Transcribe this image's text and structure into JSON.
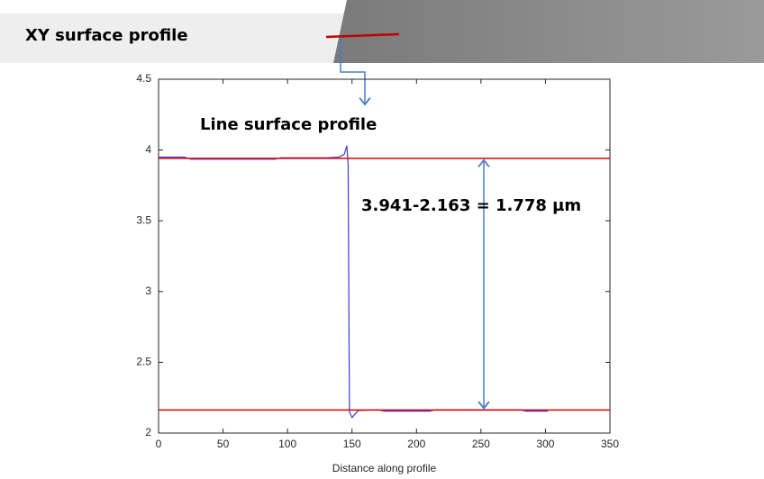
{
  "header": {
    "title": "XY surface profile"
  },
  "chart_data": {
    "type": "line",
    "x": [
      0,
      20,
      25,
      90,
      95,
      130,
      140,
      144,
      146,
      147,
      148,
      150,
      155,
      170,
      175,
      210,
      215,
      280,
      285,
      302
    ],
    "values": [
      3.95,
      3.95,
      3.935,
      3.935,
      3.945,
      3.945,
      3.95,
      3.97,
      4.03,
      3.9,
      2.15,
      2.11,
      2.16,
      2.165,
      2.155,
      2.155,
      2.165,
      2.165,
      2.155,
      2.155
    ],
    "color": "#3a3ad8",
    "xlabel": "Distance along profile",
    "xlim": [
      0,
      350
    ],
    "xticks": [
      0,
      50,
      100,
      150,
      200,
      250,
      300,
      350
    ],
    "ylim": [
      2,
      4.5
    ],
    "yticks": [
      2,
      2.5,
      3,
      3.5,
      4,
      4.5
    ],
    "reference_lines": [
      {
        "value": 3.941,
        "color": "#e00000"
      },
      {
        "value": 2.163,
        "color": "#e00000"
      }
    ],
    "annotations": [
      "Line surface profile",
      "3.941-2.163 = 1.778 µm"
    ]
  }
}
